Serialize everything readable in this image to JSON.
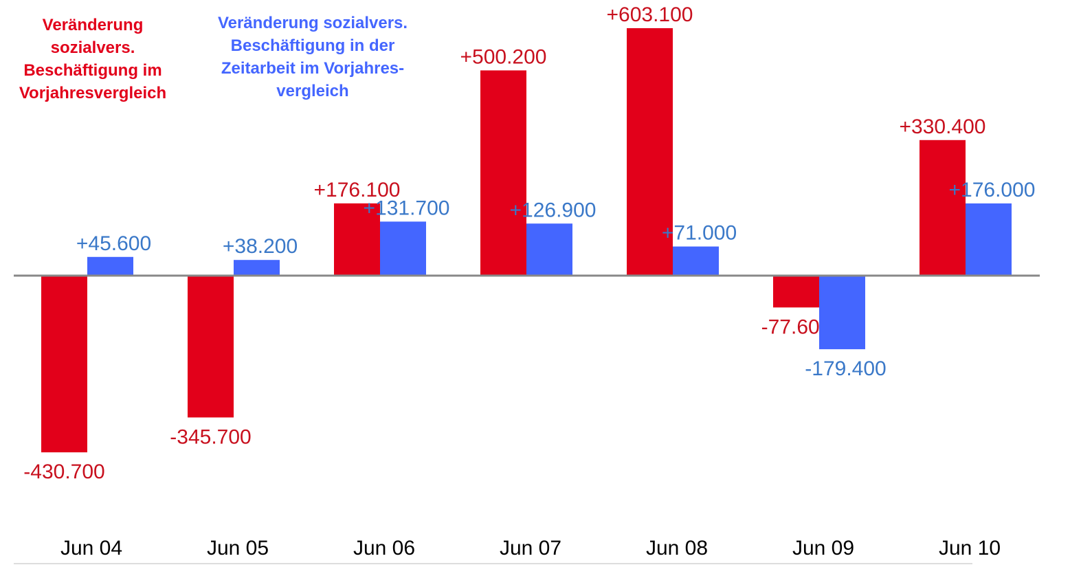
{
  "chart_data": {
    "type": "bar",
    "categories": [
      "Jun 04",
      "Jun 05",
      "Jun 06",
      "Jun 07",
      "Jun 08",
      "Jun 09",
      "Jun 10"
    ],
    "series": [
      {
        "name": "Veränderung sozialvers. Beschäftigung im Vorjahresvergleich",
        "color": "#e2001a",
        "label_color": "#c8101e",
        "values": [
          -430700,
          -345700,
          176100,
          500200,
          603100,
          -77600,
          330400
        ],
        "value_labels": [
          "-430.700",
          "-345.700",
          "+176.100",
          "+500.200",
          "+603.100",
          "-77.600",
          "+330.400"
        ]
      },
      {
        "name": "Veränderung sozialvers. Beschäftigung in der Zeitarbeit im Vorjahres-vergleich",
        "color": "#4466ff",
        "label_color": "#3a78c8",
        "values": [
          45600,
          38200,
          131700,
          126900,
          71000,
          -179400,
          176000
        ],
        "value_labels": [
          "+45.600",
          "+38.200",
          "+131.700",
          "+126.900",
          "+71.000",
          "-179.400",
          "+176.000"
        ]
      }
    ]
  }
}
